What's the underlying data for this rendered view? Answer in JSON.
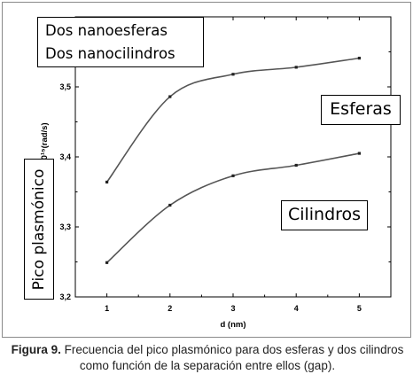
{
  "chart_data": {
    "type": "line",
    "title": "",
    "xlabel": "d (nm)",
    "ylabel": "10¹⁵(rad/s)",
    "x": [
      1,
      2,
      3,
      4,
      5
    ],
    "xlim": [
      0.5,
      5.5
    ],
    "ylim": [
      3.2,
      3.6
    ],
    "xticks": [
      "1",
      "2",
      "3",
      "4",
      "5"
    ],
    "yticks": [
      "3,2",
      "3,3",
      "3,4",
      "3,5"
    ],
    "grid": false,
    "series": [
      {
        "name": "Esferas",
        "values": [
          3.364,
          3.486,
          3.518,
          3.528,
          3.541
        ]
      },
      {
        "name": "Cilindros",
        "values": [
          3.249,
          3.331,
          3.373,
          3.388,
          3.405
        ]
      }
    ],
    "annotations": {
      "legend_line1": "Dos nanoesferas",
      "legend_line2": "Dos nanocilindros",
      "esferas": "Esferas",
      "cilindros": "Cilindros",
      "y_side_label": "Pico plasmónico"
    }
  },
  "caption": {
    "label": "Figura 9.",
    "text": " Frecuencia del pico plasmónico para dos esferas y dos cilindros como función de la separación entre ellos (gap)."
  },
  "colors": {
    "line": "#555555",
    "marker": "#222222",
    "frame": "#000000"
  }
}
